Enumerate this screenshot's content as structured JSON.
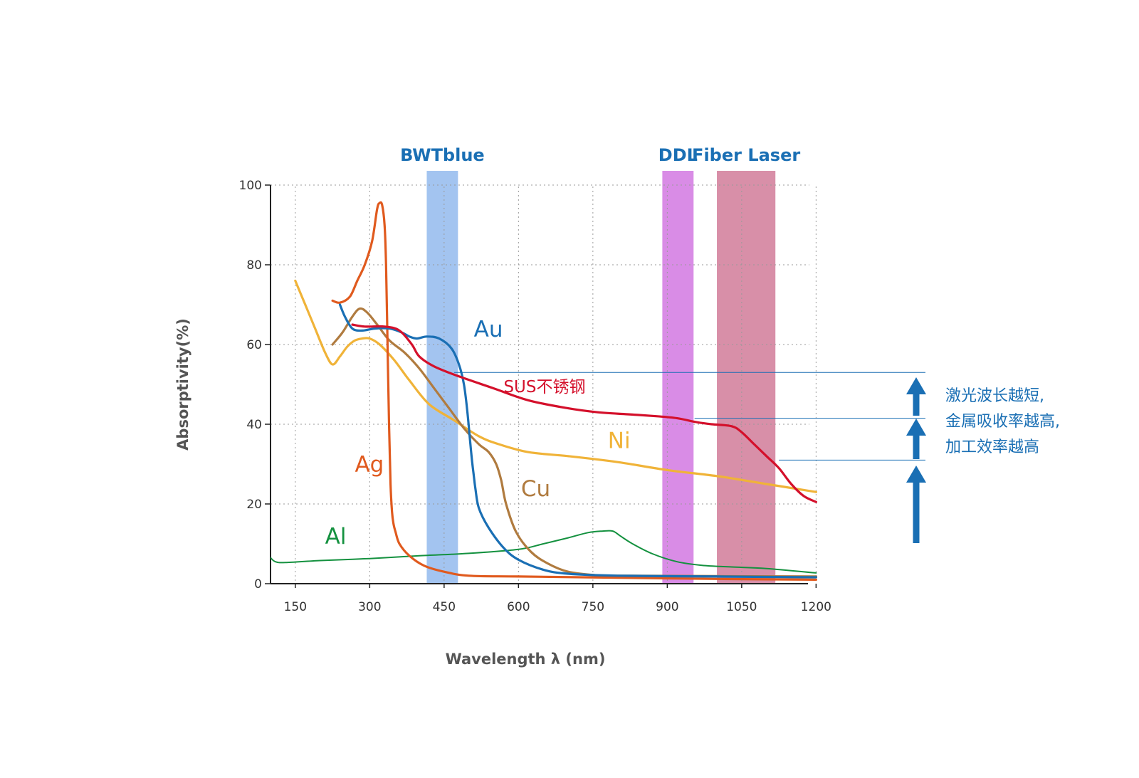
{
  "chart_data": {
    "type": "line",
    "xlabel": "Wavelength λ (nm)",
    "ylabel": "Absorptivity(%)",
    "xlim": [
      100,
      1200
    ],
    "ylim": [
      0,
      100
    ],
    "x_ticks": [
      "150",
      "300",
      "450",
      "600",
      "750",
      "900",
      "1050",
      "1200"
    ],
    "y_ticks": [
      "0",
      "20",
      "40",
      "60",
      "80",
      "100"
    ],
    "grid": true,
    "bands": [
      {
        "label": "BWTblue",
        "x_start": 415,
        "x_end": 478,
        "color": "#a3c4f0"
      },
      {
        "label": "DDL",
        "x_start": 890,
        "x_end": 953,
        "color": "#d98ce6"
      },
      {
        "label": "Fiber Laser",
        "x_start": 1000,
        "x_end": 1118,
        "color": "#d88fa8"
      }
    ],
    "series": [
      {
        "name": "Ag",
        "color": "#e05a1e",
        "width": 3.2,
        "x": [
          225,
          240,
          260,
          275,
          290,
          305,
          315,
          320,
          325,
          330,
          333,
          336,
          339,
          342,
          345,
          348,
          352,
          360,
          380,
          410,
          450,
          500,
          600,
          800,
          1000,
          1200
        ],
        "y": [
          71,
          70.5,
          72,
          76,
          80,
          86,
          94,
          95.5,
          95,
          90,
          80,
          60,
          40,
          25,
          18,
          15,
          13,
          10,
          7,
          4.5,
          3,
          2,
          1.8,
          1.5,
          1.2,
          1
        ]
      },
      {
        "name": "Au",
        "color": "#1a6fb4",
        "width": 3.2,
        "x": [
          240,
          250,
          265,
          285,
          310,
          340,
          365,
          380,
          395,
          415,
          440,
          465,
          480,
          490,
          497,
          503,
          507,
          510,
          513,
          520,
          540,
          570,
          600,
          650,
          700,
          800,
          1000,
          1200
        ],
        "y": [
          70,
          67,
          64,
          63.5,
          64,
          64,
          63,
          62,
          61.5,
          62,
          61.5,
          59,
          55,
          50,
          43,
          35,
          30,
          27,
          24,
          19,
          14,
          9,
          6,
          3.5,
          2.5,
          2,
          1.8,
          1.6
        ]
      },
      {
        "name": "Cu",
        "color": "#b07b3f",
        "width": 3.2,
        "x": [
          225,
          245,
          265,
          280,
          295,
          315,
          340,
          370,
          400,
          430,
          460,
          490,
          520,
          540,
          555,
          565,
          575,
          595,
          625,
          660,
          700,
          750,
          800,
          1200
        ],
        "y": [
          60,
          63,
          67,
          69,
          68,
          65,
          61,
          58,
          54,
          49,
          44,
          39,
          35,
          33,
          30,
          26,
          20,
          13,
          8,
          5,
          3,
          2.2,
          2,
          1.8
        ]
      },
      {
        "name": "SUS不锈钢",
        "color": "#d4102b",
        "width": 3.2,
        "x": [
          265,
          290,
          330,
          360,
          385,
          400,
          430,
          480,
          550,
          620,
          700,
          760,
          820,
          880,
          920,
          960,
          990,
          1030,
          1050,
          1075,
          1100,
          1125,
          1150,
          1175,
          1200
        ],
        "y": [
          65,
          64.5,
          64.5,
          63.5,
          60,
          57,
          54.5,
          52,
          49,
          46,
          44,
          43,
          42.5,
          42,
          41.5,
          40.5,
          40,
          39.5,
          38,
          35,
          32,
          29,
          25,
          22,
          20.5
        ]
      },
      {
        "name": "Ni",
        "color": "#f0b338",
        "width": 3.2,
        "x": [
          150,
          170,
          190,
          210,
          225,
          240,
          255,
          270,
          285,
          300,
          320,
          350,
          380,
          420,
          470,
          520,
          560,
          620,
          700,
          800,
          900,
          1000,
          1100,
          1200
        ],
        "y": [
          76,
          70,
          64,
          58,
          55,
          57,
          59.5,
          61,
          61.5,
          61.5,
          60,
          56,
          51,
          45,
          41,
          37,
          35,
          33,
          32,
          30.5,
          28.5,
          27,
          25,
          23
        ]
      },
      {
        "name": "Al",
        "color": "#14913f",
        "width": 2,
        "x": [
          100,
          110,
          130,
          200,
          300,
          400,
          500,
          600,
          650,
          700,
          740,
          770,
          790,
          805,
          830,
          870,
          920,
          970,
          1030,
          1100,
          1200
        ],
        "y": [
          6.5,
          5.5,
          5.3,
          5.8,
          6.3,
          7,
          7.6,
          8.6,
          10,
          11.5,
          12.8,
          13.2,
          13.2,
          12,
          10,
          7.5,
          5.5,
          4.6,
          4.2,
          3.8,
          2.7
        ]
      }
    ],
    "thresholds": [
      {
        "name": "BWTblue-absorption",
        "y": 53
      },
      {
        "name": "DDL-absorption",
        "y": 41.5
      },
      {
        "name": "Fiber-absorption",
        "y": 31
      }
    ]
  },
  "annotation": {
    "lines": [
      "激光波长越短,",
      "金属吸收率越高,",
      "加工效率越高"
    ],
    "color": "#1a6fb4"
  }
}
